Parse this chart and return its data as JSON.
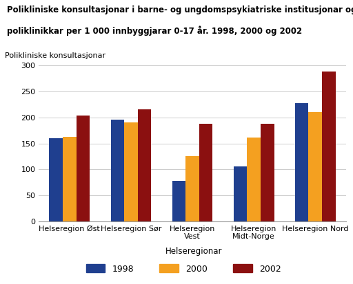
{
  "title_line1": "Polikliniske konsultasjonar i barne- og ungdomspsykiatriske institusjonar og",
  "title_line2": "poliklinikkar per 1 000 innbyggjarar 0-17 år. 1998, 2000 og 2002",
  "ylabel": "Polikliniske konsultasjonar",
  "xlabel": "Helseregionar",
  "categories": [
    "Helseregion Øst",
    "Helseregion Sør",
    "Helseregion\nVest",
    "Helseregion\nMidt-Norge",
    "Helseregion Nord"
  ],
  "series": {
    "1998": [
      160,
      196,
      78,
      106,
      228
    ],
    "2000": [
      162,
      191,
      125,
      161,
      210
    ],
    "2002": [
      204,
      215,
      188,
      188,
      288
    ]
  },
  "colors": {
    "1998": "#1f3f8f",
    "2000": "#f4a020",
    "2002": "#8b1010"
  },
  "ylim": [
    0,
    300
  ],
  "yticks": [
    0,
    50,
    100,
    150,
    200,
    250,
    300
  ],
  "bar_width": 0.22,
  "legend_labels": [
    "1998",
    "2000",
    "2002"
  ],
  "background_color": "#ffffff",
  "grid_color": "#cccccc"
}
